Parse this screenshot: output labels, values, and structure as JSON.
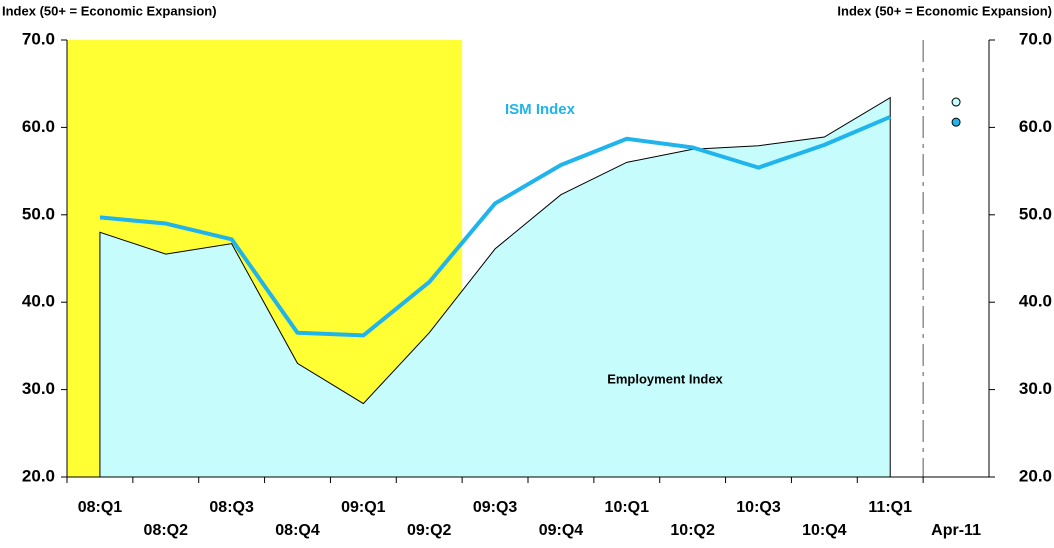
{
  "chart_data": {
    "type": "line",
    "y_label": "Index (50+ = Economic Expansion)",
    "y2_label": "Index (50+ = Economic Expansion)",
    "categories": [
      "08:Q1",
      "08:Q2",
      "08:Q3",
      "08:Q4",
      "09:Q1",
      "09:Q2",
      "09:Q3",
      "09:Q4",
      "10:Q1",
      "10:Q2",
      "10:Q3",
      "10:Q4",
      "11:Q1",
      "Apr-11"
    ],
    "series": [
      {
        "name": "Employment Index",
        "style": "area",
        "color": "#c6fcfc",
        "values": [
          48.0,
          45.5,
          46.7,
          33.0,
          28.4,
          36.5,
          46.1,
          52.3,
          56.0,
          57.5,
          57.9,
          58.9,
          63.4,
          null
        ]
      },
      {
        "name": "ISM Index",
        "style": "line",
        "color": "#1fb4ec",
        "values": [
          49.7,
          49.0,
          47.2,
          36.5,
          36.2,
          42.3,
          51.3,
          55.7,
          58.7,
          57.7,
          55.4,
          58.0,
          61.2,
          null
        ]
      }
    ],
    "markers": [
      {
        "color": "#c6fcfc",
        "values": [
          null,
          null,
          null,
          null,
          null,
          null,
          null,
          null,
          null,
          null,
          null,
          null,
          null,
          62.9
        ]
      },
      {
        "color": "#1fb4ec",
        "values": [
          null,
          null,
          null,
          null,
          null,
          null,
          null,
          null,
          null,
          null,
          null,
          null,
          null,
          60.6
        ]
      }
    ],
    "shade_bands": [
      0,
      5
    ],
    "shade_color": "#ffff33",
    "divider_before": 13,
    "ylim": [
      20,
      70
    ],
    "yticks": [
      {
        "value": 20,
        "label": "20.0"
      },
      {
        "value": 30,
        "label": "30.0"
      },
      {
        "value": 40,
        "label": "40.0"
      },
      {
        "value": 50,
        "label": "50.0"
      },
      {
        "value": 60,
        "label": "60.0"
      },
      {
        "value": 70,
        "label": "70.0"
      }
    ],
    "y2lim": [
      20,
      70
    ],
    "y2ticks": [
      {
        "value": 20,
        "label": "20.0"
      },
      {
        "value": 30,
        "label": "30.0"
      },
      {
        "value": 40,
        "label": "40.0"
      },
      {
        "value": 50,
        "label": "50.0"
      },
      {
        "value": 60,
        "label": "60.0"
      },
      {
        "value": 70,
        "label": "70.0"
      }
    ]
  }
}
